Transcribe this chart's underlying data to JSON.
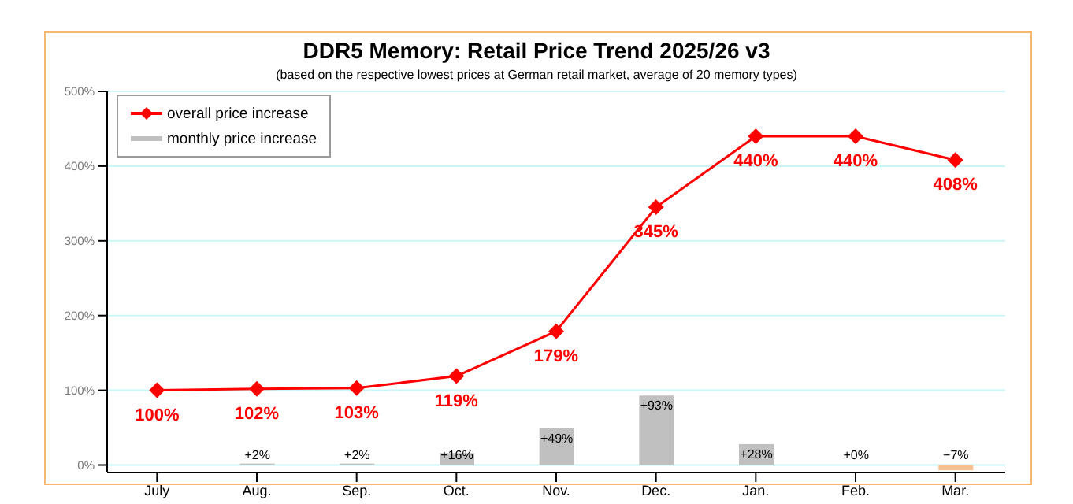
{
  "chart_data": {
    "type": "line",
    "title": "DDR5 Memory: Retail Price Trend 2025/26 v3",
    "subtitle": "(based on the respective lowest prices at German retail market, average of 20 memory types)",
    "categories": [
      "July",
      "Aug.",
      "Sep.",
      "Oct.",
      "Nov.",
      "Dec.",
      "Jan.",
      "Feb.",
      "Mar."
    ],
    "series": [
      {
        "name": "overall price increase",
        "color": "#ff0000",
        "values": [
          100,
          102,
          103,
          119,
          179,
          345,
          440,
          440,
          408
        ],
        "value_labels": [
          "100%",
          "102%",
          "103%",
          "119%",
          "179%",
          "345%",
          "440%",
          "440%",
          "408%"
        ]
      },
      {
        "name": "monthly price increase",
        "type": "bar",
        "color": "#c0c0c0",
        "colors": [
          "#c0c0c0",
          "#c0c0c0",
          "#c0c0c0",
          "#c0c0c0",
          "#c0c0c0",
          "#c0c0c0",
          "#c0c0c0",
          "#c0c0c0",
          "#fac090"
        ],
        "values": [
          null,
          2,
          2,
          16,
          49,
          93,
          28,
          0,
          -7
        ],
        "value_labels": [
          null,
          "+2%",
          "+2%",
          "+16%",
          "+49%",
          "+93%",
          "+28%",
          "+0%",
          "−7%"
        ]
      }
    ],
    "ylim": [
      -10,
      500
    ],
    "yticks": [
      {
        "value": 0,
        "label": "0%"
      },
      {
        "value": 100,
        "label": "100%"
      },
      {
        "value": 200,
        "label": "200%"
      },
      {
        "value": 300,
        "label": "300%"
      },
      {
        "value": 400,
        "label": "400%"
      },
      {
        "value": 500,
        "label": "500%"
      }
    ],
    "grid": "y",
    "legend": "top left",
    "marker": "diamond",
    "line_style": "solid"
  }
}
